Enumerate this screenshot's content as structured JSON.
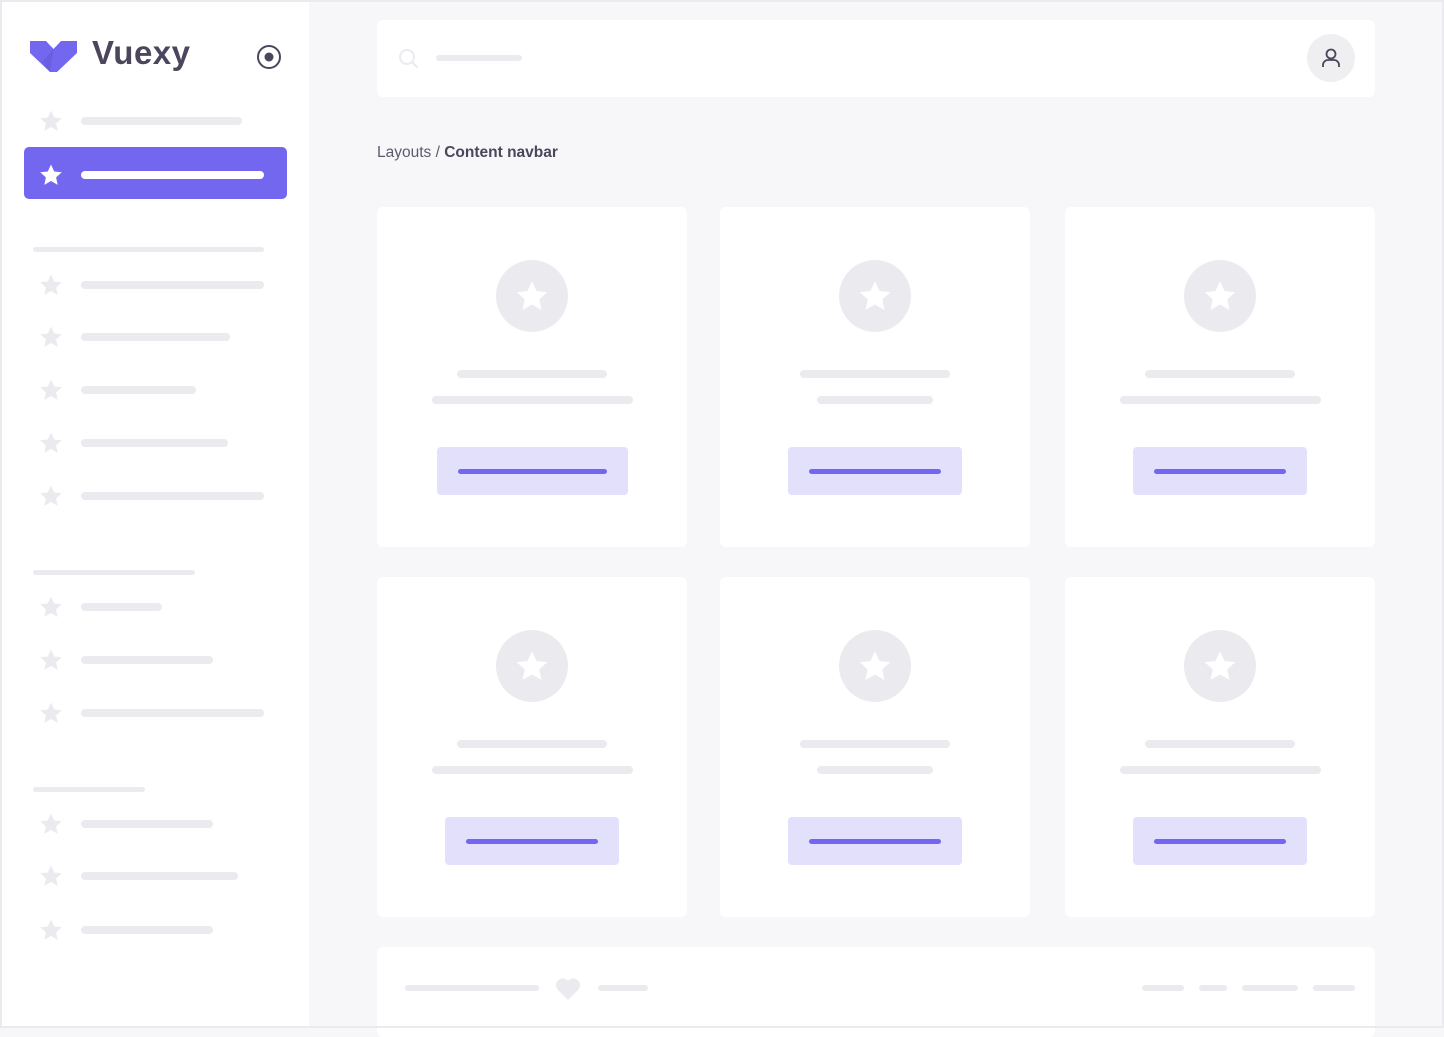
{
  "colors": {
    "primary": "#7367F0",
    "placeholder": "#EBEBEF",
    "button_tint": "#E3E0FC",
    "background": "#F7F7F9"
  },
  "sidebar": {
    "brand": "Vuexy",
    "logo_icon": "vuexy-logo",
    "toggle_icon": "radio-circle-icon",
    "item_icon": "star-icon",
    "active_index": 1
  },
  "navbar": {
    "search_icon": "search-icon",
    "user_icon": "user-icon"
  },
  "breadcrumb": {
    "parent": "Layouts",
    "separator": " / ",
    "current": "Content navbar"
  },
  "cards": {
    "count": 6,
    "icon": "star-icon"
  },
  "footer": {
    "icon": "heart-icon"
  }
}
